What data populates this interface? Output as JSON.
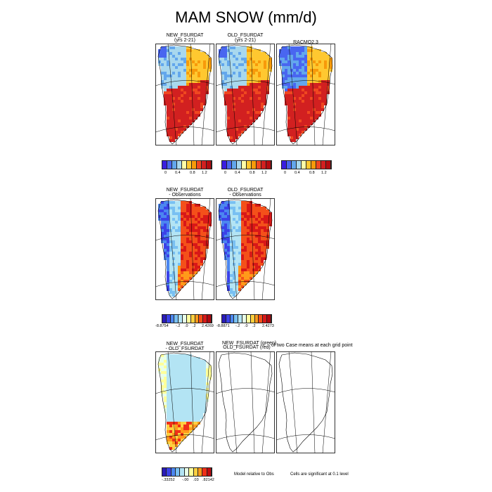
{
  "title": "MAM SNOW (mm/d)",
  "colors": {
    "abs": [
      "#3a1ee0",
      "#4966f0",
      "#63a7ec",
      "#a8d8ee",
      "#ffffa8",
      "#ffc830",
      "#f79a0a",
      "#f04820",
      "#d22020",
      "#b40c10"
    ],
    "diff": [
      "#2a1bb8",
      "#3b42e8",
      "#4b86f0",
      "#79c0f2",
      "#b3e4f4",
      "#e8ffe8",
      "#ffffa0",
      "#ffd040",
      "#ff9a1a",
      "#f4501a",
      "#d81818",
      "#b00810"
    ],
    "sig": [
      "#2a1bb8",
      "#3b42e8",
      "#4b86f0",
      "#79c0f2",
      "#b3e4f4",
      "#e8ffe8",
      "#ffff9a",
      "#ffd040",
      "#ff9a1a",
      "#f03018",
      "#c00c10"
    ]
  },
  "row1": {
    "panels": [
      {
        "title": "NEW_FSURDAT",
        "subtitle": "(yrs 2-21)",
        "pattern": "model"
      },
      {
        "title": "OLD_FSURDAT",
        "subtitle": "(yrs 2-21)",
        "pattern": "model"
      },
      {
        "title": "RACMO2.3",
        "subtitle": "",
        "pattern": "racmo"
      }
    ],
    "ticks": [
      "0",
      "0.4",
      "0.8",
      "1.2"
    ]
  },
  "row2": {
    "panels": [
      {
        "title": "NEW_FSURDAT",
        "subtitle": "- Observations",
        "pattern": "bias"
      },
      {
        "title": "OLD_FSURDAT",
        "subtitle": "- Observations",
        "pattern": "bias"
      }
    ],
    "ticks1": [
      "-8.8754",
      "-.2",
      ".0",
      ".2",
      "2.4269"
    ],
    "ticks2": [
      "-8.8871",
      "-.2",
      ".0",
      ".2",
      "2.4273"
    ]
  },
  "row3": {
    "panels": [
      {
        "title": "NEW_FSURDAT",
        "subtitle": "- OLD_FSURDAT",
        "pattern": "nodiff"
      },
      {
        "title": "",
        "subtitle": "",
        "pattern": "outline"
      },
      {
        "title": "",
        "subtitle": "",
        "pattern": "outline"
      }
    ],
    "sig_title_a": "NEW_FSURDAT (green)",
    "sig_title_b": "OLD_FSURDAT (red)",
    "sig_title_c": "of two Case means at each grid point",
    "ticks": [
      "-.33252",
      "-.00",
      ".03",
      ".82142"
    ],
    "note_model": "Model relative to Obs",
    "note_cells": "Cells are significant at 0.1 level"
  },
  "chart_data": [
    {
      "type": "heatmap",
      "title": "NEW_FSURDAT (yrs 2-21)",
      "colorbar_ticks": [
        0,
        0.4,
        0.8,
        1.2
      ],
      "units": "mm/d"
    },
    {
      "type": "heatmap",
      "title": "OLD_FSURDAT (yrs 2-21)",
      "colorbar_ticks": [
        0,
        0.4,
        0.8,
        1.2
      ],
      "units": "mm/d"
    },
    {
      "type": "heatmap",
      "title": "RACMO2.3",
      "colorbar_ticks": [
        0,
        0.4,
        0.8,
        1.2
      ],
      "units": "mm/d"
    },
    {
      "type": "heatmap",
      "title": "NEW_FSURDAT - Observations",
      "colorbar_range": [
        -8.8754,
        2.4269
      ],
      "colorbar_ticks": [
        -0.2,
        0.0,
        0.2
      ]
    },
    {
      "type": "heatmap",
      "title": "OLD_FSURDAT - Observations",
      "colorbar_range": [
        -8.8871,
        2.4273
      ],
      "colorbar_ticks": [
        -0.2,
        0.0,
        0.2
      ]
    },
    {
      "type": "heatmap",
      "title": "NEW_FSURDAT - OLD_FSURDAT",
      "colorbar_range": [
        -0.33252,
        0.82142
      ],
      "colorbar_ticks": [
        -0.0,
        0.03
      ]
    }
  ]
}
